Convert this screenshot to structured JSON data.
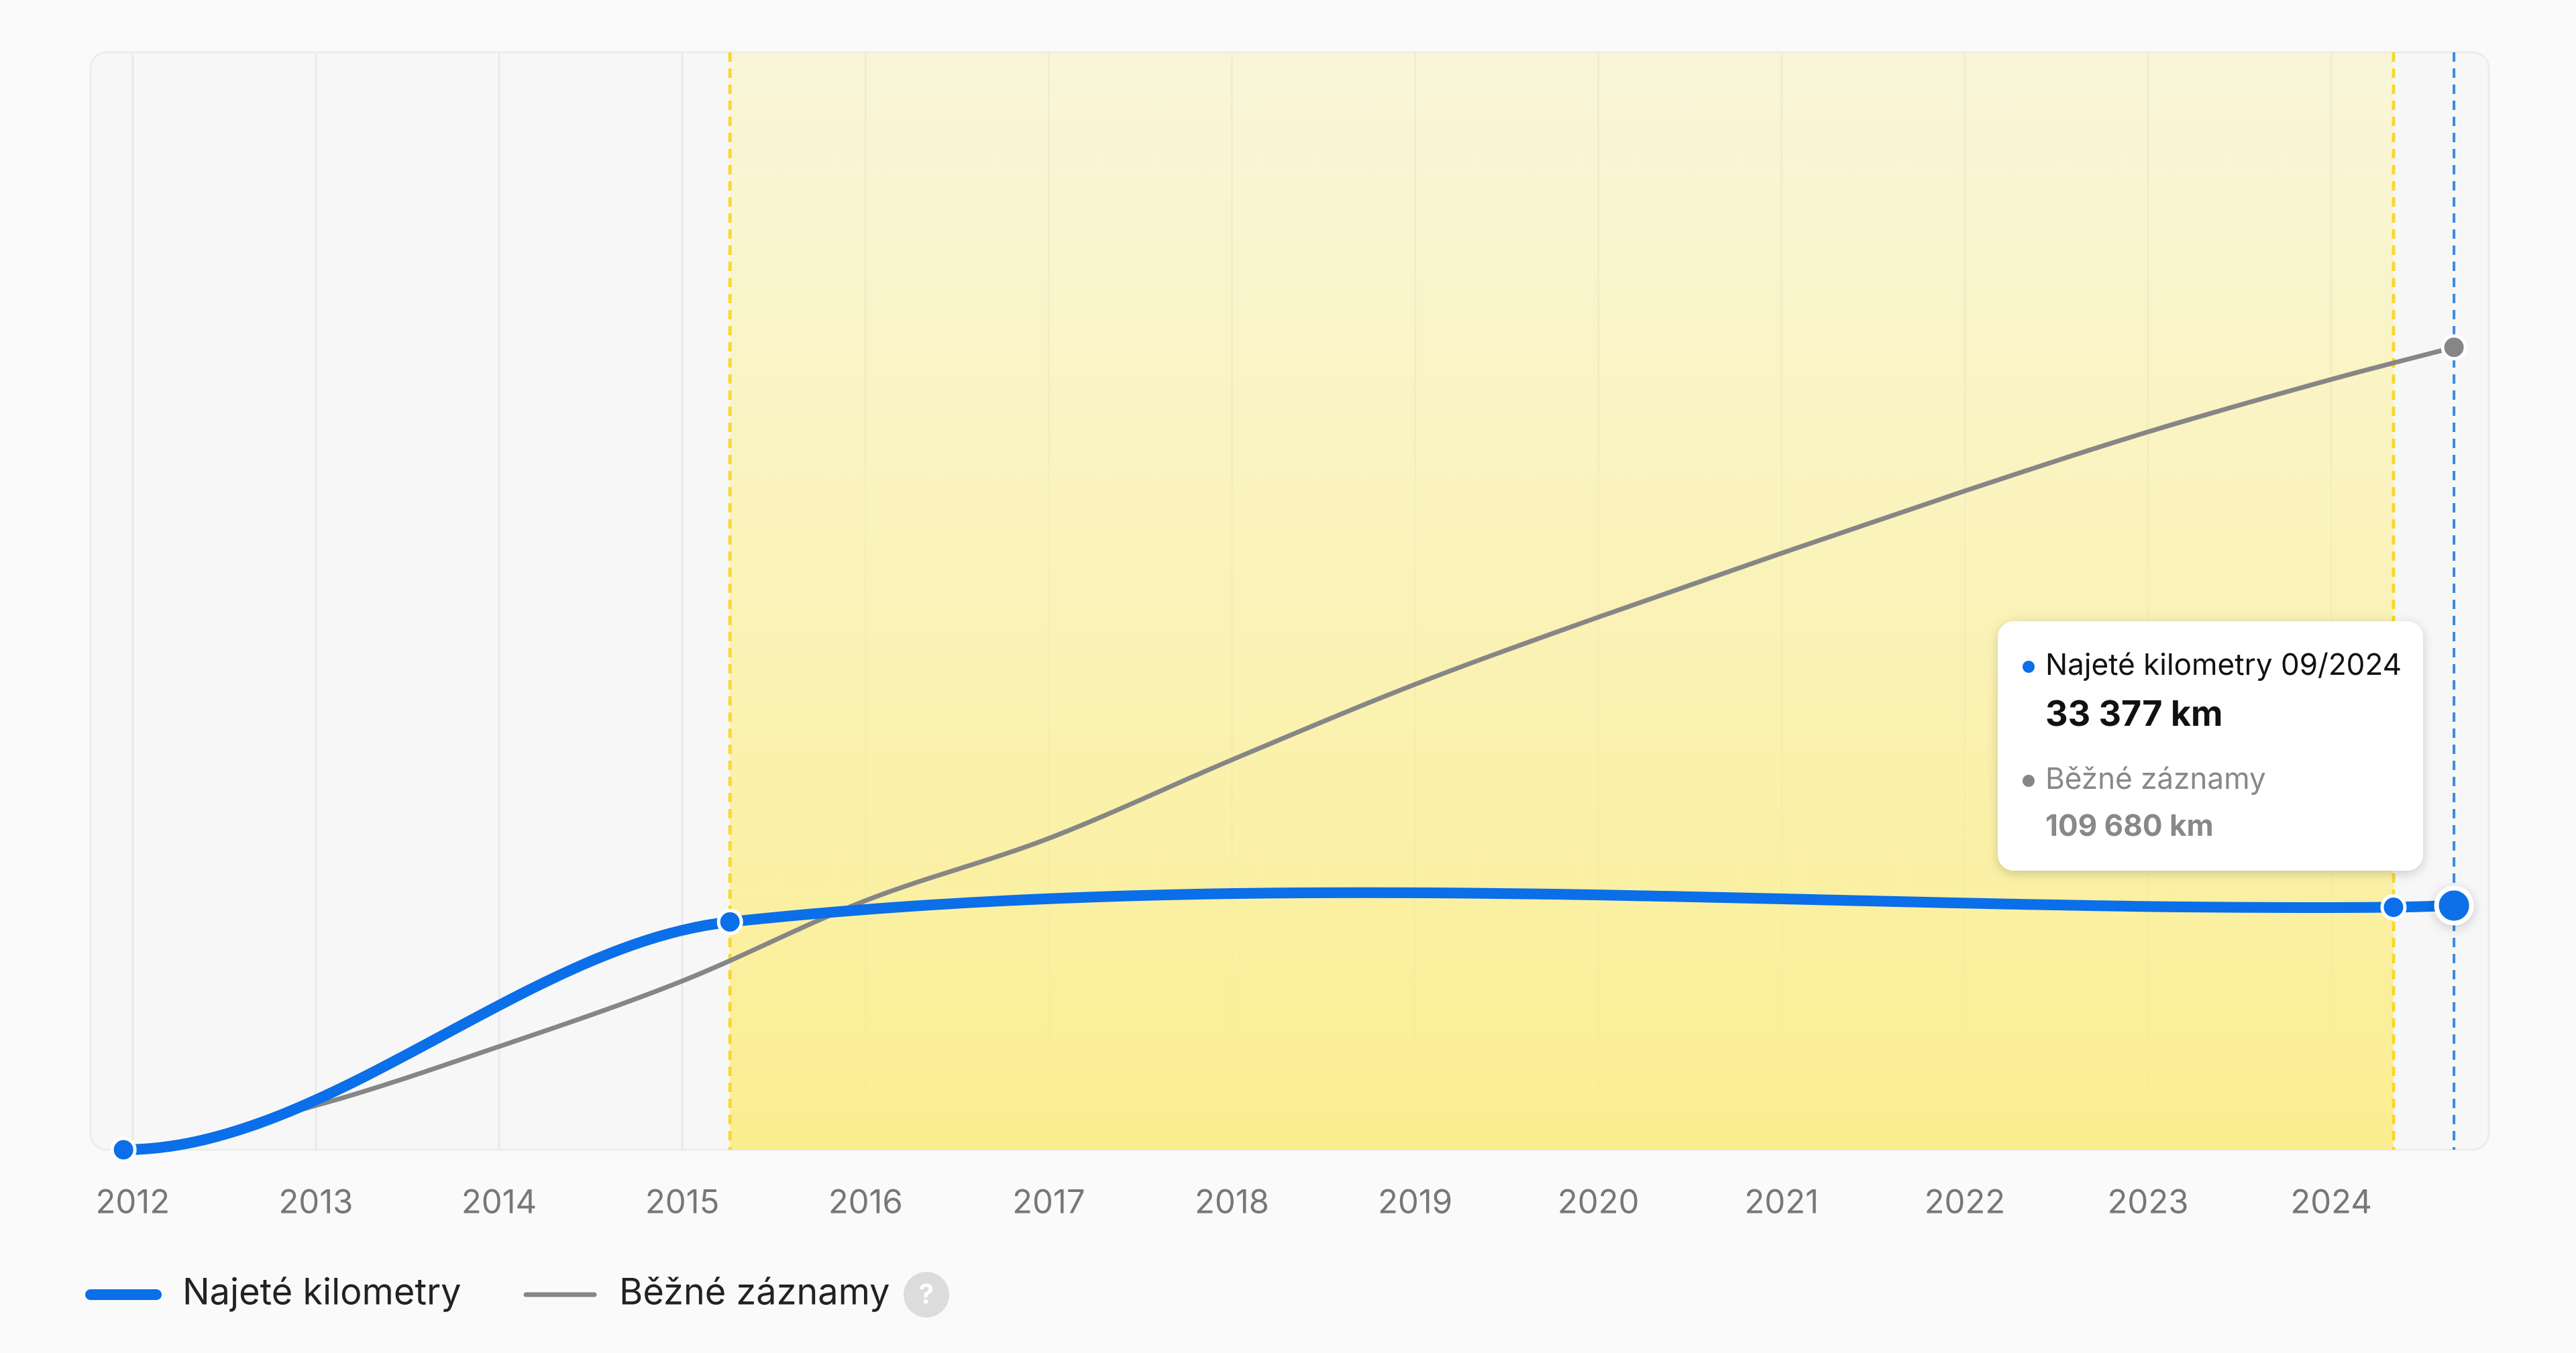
{
  "chart_data": {
    "type": "line",
    "series": [
      {
        "name": "Najeté kilometry",
        "color": "#0a6fe8",
        "x": [
          2011.95,
          2015.26,
          2024.34,
          2024.67
        ],
        "values": [
          0,
          31140,
          33150,
          33377
        ],
        "value_labels": [
          null,
          null,
          null,
          "33 377 km"
        ]
      },
      {
        "name": "Běžné záznamy",
        "color": "#868686",
        "x": [
          2011.95,
          2013,
          2014,
          2015,
          2016,
          2017,
          2018,
          2019,
          2020,
          2021,
          2022,
          2023,
          2024,
          2024.67
        ],
        "values": [
          0,
          6050,
          14110,
          23070,
          34050,
          42560,
          53300,
          63620,
          72800,
          81540,
          90050,
          98120,
          105290,
          109680
        ],
        "value_labels": [
          null,
          null,
          null,
          null,
          null,
          null,
          null,
          null,
          null,
          null,
          null,
          null,
          null,
          "109 680 km"
        ]
      }
    ],
    "xlim": [
      2011.77,
      2024.86
    ],
    "xticks": [
      2012,
      2013,
      2014,
      2015,
      2016,
      2017,
      2018,
      2019,
      2020,
      2021,
      2022,
      2023,
      2024
    ],
    "ylim": [
      0,
      150000
    ],
    "grid": true,
    "tooltip_title": "Najeté kilometry 09/2024",
    "legend_help": "?"
  }
}
